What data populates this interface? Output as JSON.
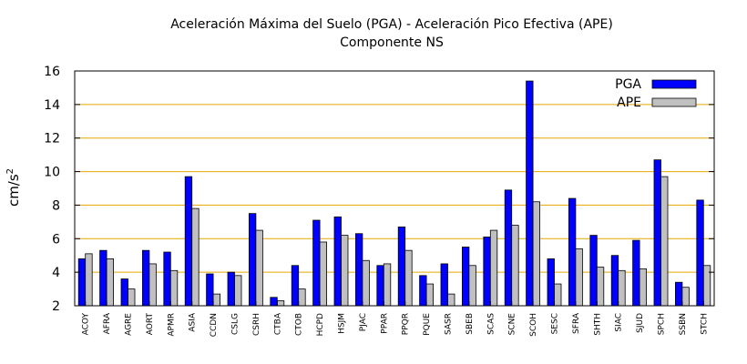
{
  "chart_data": {
    "type": "bar",
    "title": "Aceleración Máxima del Suelo (PGA) -  Aceleración Pico Efectiva (APE)",
    "subtitle": "Componente NS",
    "xlabel": "",
    "ylabel_base": "cm/s",
    "ylabel_sup": "2",
    "ylim": [
      2,
      16
    ],
    "yticks": [
      2,
      4,
      6,
      8,
      10,
      12,
      14,
      16
    ],
    "grid": "horizontal",
    "grid_color": "#e6a800",
    "legend_position": "top-right",
    "categories": [
      "ACOY",
      "AFRA",
      "AGRE",
      "AORT",
      "APMR",
      "ASIA",
      "CCDN",
      "CSLG",
      "CSRH",
      "CTBA",
      "CTOB",
      "HCPD",
      "HSJM",
      "PJAC",
      "PPAR",
      "PPQR",
      "PQUE",
      "SASR",
      "SBEB",
      "SCAS",
      "SCNE",
      "SCOH",
      "SESC",
      "SFRA",
      "SHTH",
      "SIAC",
      "SJUD",
      "SPCH",
      "SSBN",
      "STCH"
    ],
    "series": [
      {
        "name": "PGA",
        "color": "#0000ff",
        "values": [
          4.8,
          5.3,
          3.6,
          5.3,
          5.2,
          9.7,
          3.9,
          4.0,
          7.5,
          2.5,
          4.4,
          7.1,
          7.3,
          6.3,
          4.4,
          6.7,
          3.8,
          4.5,
          5.5,
          6.1,
          8.9,
          15.4,
          4.8,
          8.4,
          6.2,
          5.0,
          5.9,
          10.7,
          3.4,
          8.3
        ]
      },
      {
        "name": "APE",
        "color": "#c0c0c0",
        "values": [
          5.1,
          4.8,
          3.0,
          4.5,
          4.1,
          7.8,
          2.7,
          3.8,
          6.5,
          2.3,
          3.0,
          5.8,
          6.2,
          4.7,
          4.5,
          5.3,
          3.3,
          2.7,
          4.4,
          6.5,
          6.8,
          8.2,
          3.3,
          5.4,
          4.3,
          4.1,
          4.2,
          9.7,
          3.1,
          4.4
        ]
      }
    ]
  }
}
